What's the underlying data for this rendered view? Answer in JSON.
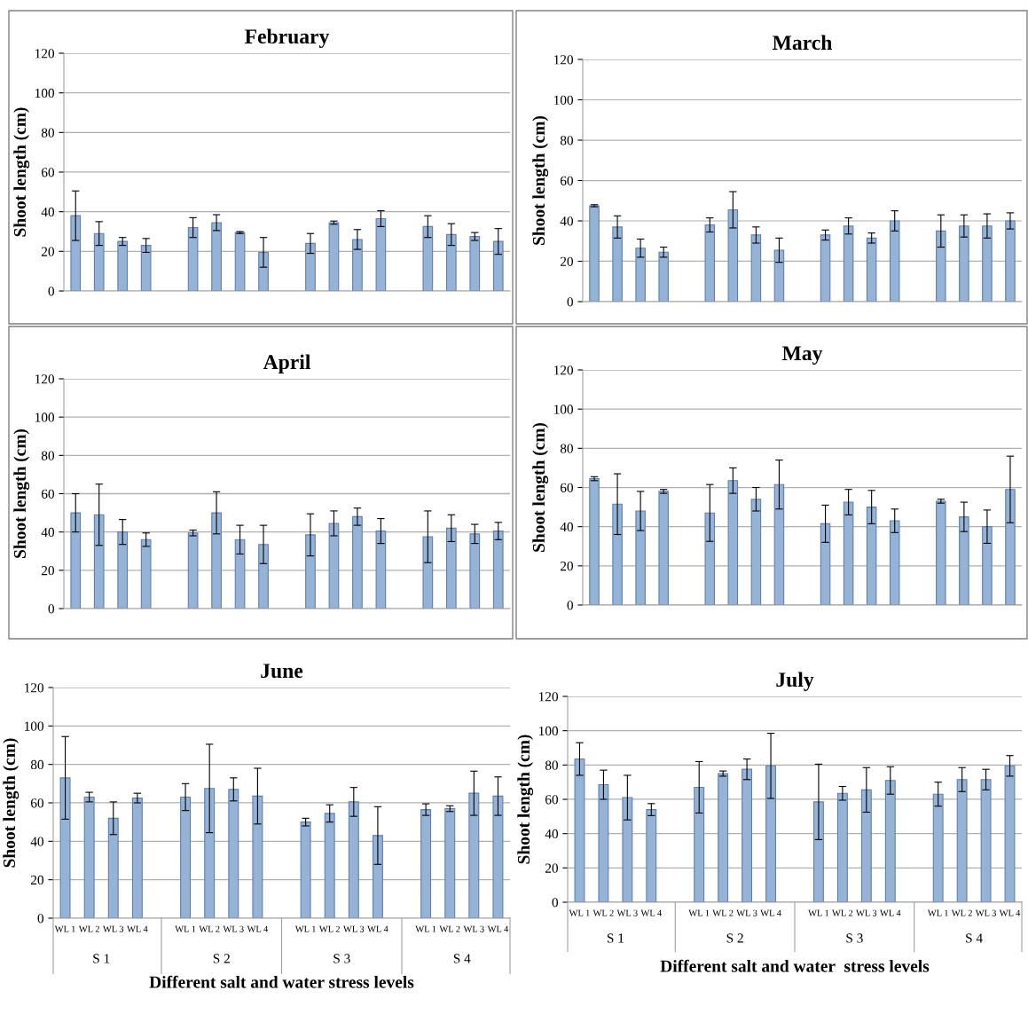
{
  "chart_data": [
    {
      "type": "bar",
      "title": "February",
      "ylabel": "Shoot length (cm)",
      "categories": [
        null,
        null,
        null,
        null,
        null,
        null,
        null,
        null,
        null,
        null,
        null,
        null,
        null,
        null,
        null,
        null,
        null,
        null,
        null
      ],
      "color": "#95b3d7",
      "values": [
        38,
        29,
        25,
        23,
        null,
        32,
        34.5,
        29.5,
        19.5,
        null,
        24,
        34.5,
        26,
        36.5,
        null,
        32.5,
        28.5,
        27.5,
        25
      ],
      "errors": [
        12.5,
        6,
        2,
        3.5,
        null,
        5,
        4,
        0.5,
        7.5,
        null,
        5,
        0.8,
        5,
        4,
        null,
        5.5,
        5.5,
        2,
        6.5
      ],
      "ylim": [
        0,
        120
      ],
      "yticks": [
        0,
        20,
        40,
        60,
        80,
        100,
        120
      ],
      "grid": "y",
      "tick_labels": "y"
    },
    {
      "type": "bar",
      "title": "March",
      "ylabel": "Shoot length (cm)",
      "categories": [
        null,
        null,
        null,
        null,
        null,
        null,
        null,
        null,
        null,
        null,
        null,
        null,
        null,
        null,
        null,
        null,
        null,
        null,
        null
      ],
      "color": "#95b3d7",
      "values": [
        47.5,
        37,
        26.5,
        24.5,
        null,
        38,
        45.5,
        33,
        25.5,
        null,
        33,
        37.5,
        31.5,
        40,
        null,
        35,
        37.5,
        37.5,
        40
      ],
      "errors": [
        0.5,
        5.5,
        4.5,
        2.5,
        null,
        3.5,
        9,
        4,
        6,
        null,
        2.5,
        4,
        2.5,
        5,
        null,
        8,
        5.5,
        6,
        4
      ],
      "ylim": [
        0,
        120
      ],
      "yticks": [
        0,
        20,
        40,
        60,
        80,
        100,
        120
      ],
      "grid": "y",
      "tick_labels": "y"
    },
    {
      "type": "bar",
      "title": "April",
      "ylabel": "Shoot length (cm)",
      "categories": [
        null,
        null,
        null,
        null,
        null,
        null,
        null,
        null,
        null,
        null,
        null,
        null,
        null,
        null,
        null,
        null,
        null,
        null,
        null
      ],
      "color": "#95b3d7",
      "values": [
        50,
        49,
        40,
        36,
        null,
        39.5,
        50,
        36,
        33.5,
        null,
        38.5,
        44.5,
        48,
        40.5,
        null,
        37.5,
        42,
        39,
        40.5
      ],
      "errors": [
        10,
        16,
        6.5,
        3.5,
        null,
        1.5,
        11,
        7.5,
        10,
        null,
        11,
        6.5,
        4.5,
        6.5,
        null,
        13.5,
        7,
        5,
        4.5
      ],
      "ylim": [
        0,
        120
      ],
      "yticks": [
        0,
        20,
        40,
        60,
        80,
        100,
        120
      ],
      "grid": "y",
      "tick_labels": "y"
    },
    {
      "type": "bar",
      "title": "May",
      "ylabel": "Shoot length (cm)",
      "categories": [
        null,
        null,
        null,
        null,
        null,
        null,
        null,
        null,
        null,
        null,
        null,
        null,
        null,
        null,
        null,
        null,
        null,
        null,
        null
      ],
      "color": "#95b3d7",
      "values": [
        64.5,
        51.5,
        48,
        58,
        null,
        47,
        63.5,
        54,
        61.5,
        null,
        41.5,
        52.5,
        50,
        43,
        null,
        53,
        45,
        40,
        59
      ],
      "errors": [
        1,
        15.5,
        10,
        1,
        null,
        14.5,
        6.5,
        6,
        12.5,
        null,
        9.5,
        6.5,
        8.5,
        6,
        null,
        1,
        7.5,
        8.5,
        17
      ],
      "ylim": [
        0,
        120
      ],
      "yticks": [
        0,
        20,
        40,
        60,
        80,
        100,
        120
      ],
      "grid": "y",
      "tick_labels": "y"
    },
    {
      "type": "bar",
      "title": "June",
      "ylabel": "Shoot length (cm)",
      "xlabel": "Different salt and water stress levels",
      "categories": [
        "WL 1",
        "WL 2",
        "WL 3",
        "WL 4",
        null,
        "WL 1",
        "WL 2",
        "WL 3",
        "WL 4",
        null,
        "WL 1",
        "WL 2",
        "WL 3",
        "WL 4",
        null,
        "WL 1",
        "WL 2",
        "WL 3",
        "WL 4"
      ],
      "color": "#95b3d7",
      "values": [
        73,
        63,
        52,
        62.5,
        null,
        63,
        67.5,
        67,
        63.5,
        null,
        50,
        54.5,
        60.5,
        43,
        null,
        56.5,
        57,
        65,
        63.5
      ],
      "errors": [
        21.5,
        2.5,
        8.5,
        2.5,
        null,
        7,
        23,
        6,
        14.5,
        null,
        2,
        4.5,
        7.5,
        15,
        null,
        3,
        1.5,
        11.5,
        10
      ],
      "annotations": [
        "S 1",
        "S 2",
        "S 3",
        "S 4"
      ],
      "ylim": [
        0,
        120
      ],
      "yticks": [
        0,
        20,
        40,
        60,
        80,
        100,
        120
      ],
      "grid": "y"
    },
    {
      "type": "bar",
      "title": "July",
      "ylabel": "Shoot length (cm)",
      "xlabel": "Different salt and water  stress levels",
      "categories": [
        "WL 1",
        "WL 2",
        "WL 3",
        "WL 4",
        null,
        "WL 1",
        "WL 2",
        "WL 3",
        "WL 4",
        null,
        "WL 1",
        "WL 2",
        "WL 3",
        "WL 4",
        null,
        "WL 1",
        "WL 2",
        "WL 3",
        "WL 4"
      ],
      "color": "#95b3d7",
      "values": [
        83.5,
        68.5,
        61,
        54,
        null,
        67,
        75,
        77.5,
        79.5,
        null,
        58.5,
        63.5,
        65.5,
        71,
        null,
        63,
        71.5,
        71.5,
        79.5
      ],
      "errors": [
        9.5,
        8.5,
        13,
        3.5,
        null,
        15,
        1.5,
        6,
        19,
        null,
        22,
        4,
        13,
        8,
        null,
        7,
        7,
        6,
        6
      ],
      "annotations": [
        "S 1",
        "S 2",
        "S 3",
        "S 4"
      ],
      "ylim": [
        0,
        120
      ],
      "yticks": [
        0,
        20,
        40,
        60,
        80,
        100,
        120
      ],
      "grid": "y"
    }
  ]
}
